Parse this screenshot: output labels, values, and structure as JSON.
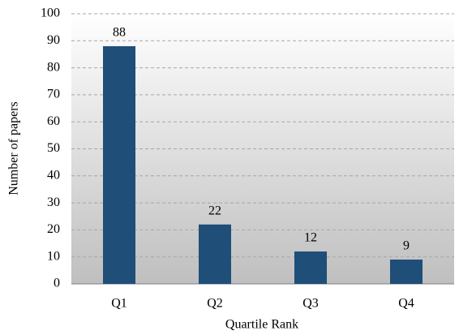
{
  "chart_data": {
    "type": "bar",
    "xlabel": "Quartile Rank",
    "ylabel": "Number of papers",
    "categories": [
      "Q1",
      "Q2",
      "Q3",
      "Q4"
    ],
    "values": [
      88,
      22,
      12,
      9
    ],
    "color": "#1f4e79",
    "ylim": [
      0,
      100
    ],
    "yticks": [
      0,
      10,
      20,
      30,
      40,
      50,
      60,
      70,
      80,
      90,
      100
    ],
    "grid": true
  }
}
